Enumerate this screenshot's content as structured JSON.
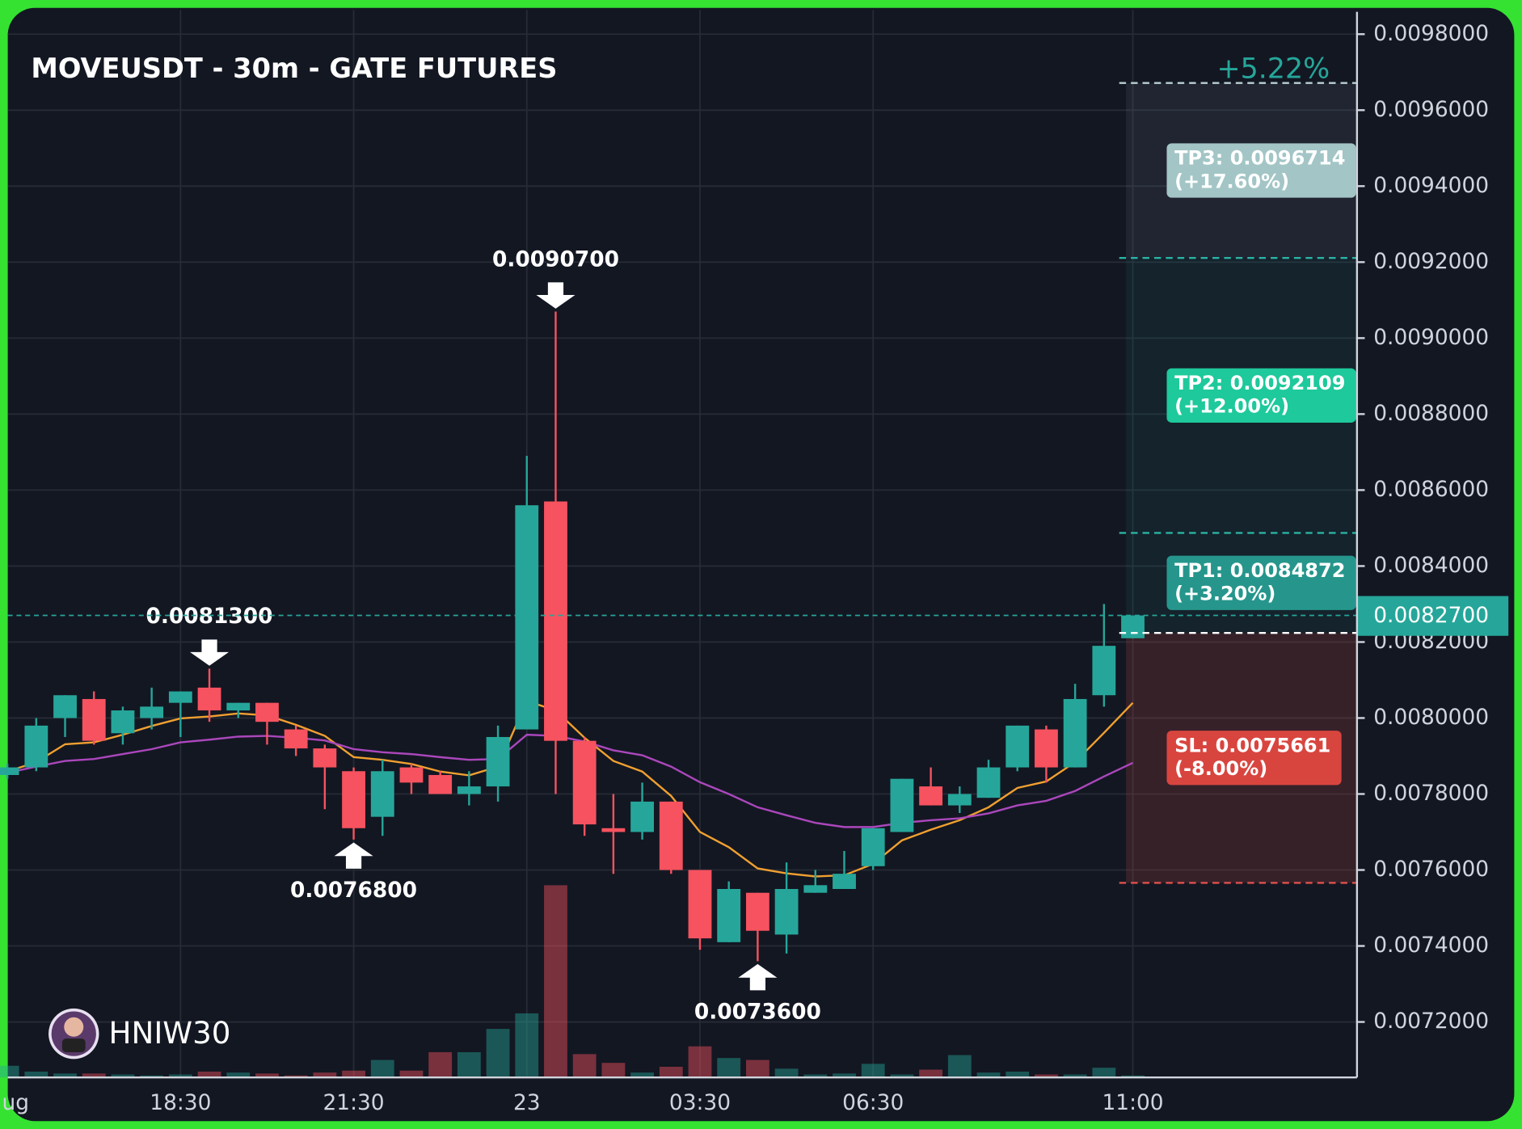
{
  "chart_data": {
    "type": "candlestick",
    "title": "MOVEUSDT - 30m - GATE FUTURES",
    "watermark": "HNIW30",
    "categories": [
      "ug",
      null,
      null,
      null,
      null,
      null,
      "18:30",
      null,
      null,
      null,
      null,
      null,
      "21:30",
      null,
      null,
      null,
      null,
      null,
      "23",
      null,
      null,
      null,
      null,
      null,
      "03:30",
      null,
      null,
      null,
      null,
      null,
      "06:30",
      null,
      null,
      null,
      null,
      null,
      null,
      null,
      null,
      "11:00"
    ],
    "open": [
      0.00785,
      0.00787,
      0.008,
      0.00805,
      0.00796,
      0.008,
      0.00804,
      0.00808,
      0.00802,
      0.00804,
      0.00797,
      0.00792,
      0.00786,
      0.00774,
      0.00787,
      0.00785,
      0.0078,
      0.00782,
      0.00797,
      0.00857,
      0.00794,
      0.00771,
      0.0077,
      0.00778,
      0.0076,
      0.00741,
      0.00754,
      0.00743,
      0.00754,
      0.00755,
      0.00761,
      0.0077,
      0.00782,
      0.00777,
      0.00779,
      0.00787,
      0.00797,
      0.00787,
      0.00806,
      0.00821
    ],
    "high": [
      0.00788,
      0.008,
      0.00806,
      0.00807,
      0.00803,
      0.00808,
      0.00807,
      0.00813,
      0.00804,
      0.00804,
      0.00798,
      0.00793,
      0.00787,
      0.00789,
      0.00788,
      0.00786,
      0.00786,
      0.00798,
      0.00869,
      0.00907,
      0.00795,
      0.0078,
      0.00783,
      0.00778,
      0.0076,
      0.00757,
      0.00754,
      0.00762,
      0.0076,
      0.00765,
      0.00771,
      0.00784,
      0.00787,
      0.00782,
      0.00789,
      0.00798,
      0.00798,
      0.00809,
      0.0083,
      0.00827
    ],
    "low": [
      0.00784,
      0.00786,
      0.00795,
      0.00793,
      0.00793,
      0.00797,
      0.00795,
      0.00799,
      0.008,
      0.00793,
      0.0079,
      0.00776,
      0.00768,
      0.00769,
      0.0078,
      0.0078,
      0.00777,
      0.00778,
      0.00797,
      0.0078,
      0.00769,
      0.00759,
      0.00768,
      0.00759,
      0.00739,
      0.00741,
      0.00736,
      0.00738,
      0.00754,
      0.00755,
      0.0076,
      0.0077,
      0.00777,
      0.00775,
      0.00779,
      0.00786,
      0.00783,
      0.00787,
      0.00803,
      0.00821
    ],
    "close": [
      0.00787,
      0.00798,
      0.00806,
      0.00794,
      0.00802,
      0.00803,
      0.00807,
      0.00802,
      0.00804,
      0.00799,
      0.00792,
      0.00787,
      0.00771,
      0.00786,
      0.00783,
      0.0078,
      0.00782,
      0.00795,
      0.00856,
      0.00794,
      0.00772,
      0.0077,
      0.00778,
      0.0076,
      0.00742,
      0.00755,
      0.00744,
      0.00755,
      0.00756,
      0.00759,
      0.00771,
      0.00784,
      0.00777,
      0.0078,
      0.00787,
      0.00798,
      0.00787,
      0.00805,
      0.00819,
      0.00827
    ],
    "volume": [
      12,
      6,
      4,
      4,
      3,
      2,
      3,
      6,
      5,
      4,
      2,
      5,
      7,
      18,
      7,
      26,
      26,
      50,
      66,
      198,
      24,
      15,
      5,
      11,
      32,
      20,
      18,
      9,
      3,
      4,
      14,
      3,
      8,
      23,
      5,
      6,
      3,
      3,
      10,
      2
    ],
    "up_color": "#26a69a",
    "down_color": "#f7525f",
    "moving_averages": [
      {
        "color": "#f0a030",
        "values": [
          0.007859,
          0.007884,
          0.007931,
          0.007936,
          0.007956,
          0.007979,
          0.007999,
          0.008004,
          0.008012,
          0.008007,
          0.007982,
          0.007953,
          0.007897,
          0.00789,
          0.007879,
          0.007859,
          0.007849,
          0.007872,
          0.008045,
          0.00802,
          0.007948,
          0.007887,
          0.007859,
          0.007795,
          0.0077,
          0.00766,
          0.007604,
          0.007591,
          0.007583,
          0.007586,
          0.007616,
          0.007678,
          0.007706,
          0.007731,
          0.007765,
          0.007816,
          0.007833,
          0.007884,
          0.007961,
          0.00804
        ]
      },
      {
        "color": "#ab47bc",
        "values": [
          0.007856,
          0.007872,
          0.007887,
          0.007892,
          0.007905,
          0.007918,
          0.007936,
          0.007943,
          0.007951,
          0.007953,
          0.007948,
          0.007941,
          0.007918,
          0.00791,
          0.007905,
          0.007897,
          0.00789,
          0.007892,
          0.007956,
          0.007953,
          0.007938,
          0.007915,
          0.007902,
          0.007872,
          0.007831,
          0.0078,
          0.007765,
          0.007744,
          0.007724,
          0.007713,
          0.007713,
          0.007724,
          0.007731,
          0.007736,
          0.007749,
          0.00777,
          0.007782,
          0.007808,
          0.007846,
          0.007882
        ]
      }
    ],
    "ylim": [
      0.007054,
      0.009864
    ],
    "yticks": [
      {
        "value": 0.0072,
        "label": "0.0072000"
      },
      {
        "value": 0.0074,
        "label": "0.0074000"
      },
      {
        "value": 0.0076,
        "label": "0.0076000"
      },
      {
        "value": 0.0078,
        "label": "0.0078000"
      },
      {
        "value": 0.008,
        "label": "0.0080000"
      },
      {
        "value": 0.0082,
        "label": "0.0082000"
      },
      {
        "value": 0.0084,
        "label": "0.0084000"
      },
      {
        "value": 0.0086,
        "label": "0.0086000"
      },
      {
        "value": 0.0088,
        "label": "0.0088000"
      },
      {
        "value": 0.009,
        "label": "0.0090000"
      },
      {
        "value": 0.0092,
        "label": "0.0092000"
      },
      {
        "value": 0.0094,
        "label": "0.0094000"
      },
      {
        "value": 0.0096,
        "label": "0.0096000"
      },
      {
        "value": 0.0098,
        "label": "0.0098000"
      }
    ],
    "grid": true,
    "current_price": {
      "value": 0.00827,
      "label": "0.0082700",
      "color": "#26a69a"
    },
    "annotations": [
      {
        "text": "0.0090700",
        "value": 0.00907,
        "side": "high"
      },
      {
        "text": "0.0081300",
        "value": 0.00813,
        "side": "high"
      },
      {
        "text": "0.0076800",
        "value": 0.00768,
        "side": "low"
      },
      {
        "text": "0.0073600",
        "value": 0.00736,
        "side": "low"
      }
    ],
    "trade": {
      "summary": "+5.22%",
      "entry": 0.008224,
      "stop": {
        "label": "SL: 0.0075661",
        "change": "(-8.00%)",
        "value": 0.0075661,
        "color": "#d8453f"
      },
      "targets": [
        {
          "label": "TP1: 0.0084872",
          "change": "(+3.20%)",
          "value": 0.0084872,
          "color": "#26968c"
        },
        {
          "label": "TP2: 0.0092109",
          "change": "(+12.00%)",
          "value": 0.0092109,
          "color": "#1ec99b"
        },
        {
          "label": "TP3: 0.0096714",
          "change": "(+17.60%)",
          "value": 0.0096714,
          "color": "#a3c5c6"
        }
      ]
    }
  }
}
